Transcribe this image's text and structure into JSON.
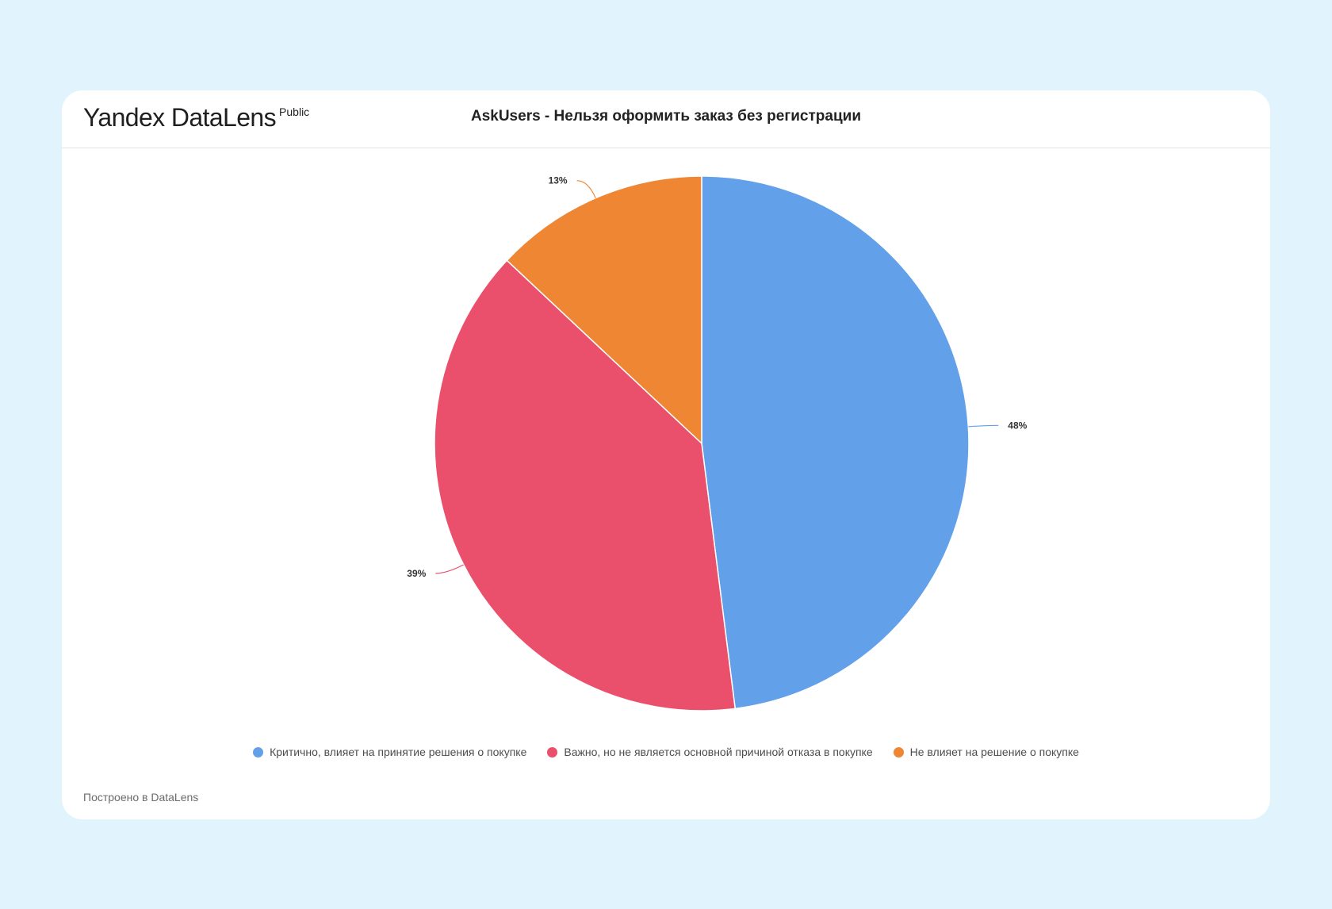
{
  "brand": {
    "name": "Yandex DataLens",
    "badge": "Public"
  },
  "footer_text": "Построено в DataLens",
  "chart_data": {
    "type": "pie",
    "title": "AskUsers - Нельзя оформить заказ без регистрации",
    "legend_position": "bottom-center",
    "slices": [
      {
        "label": "Критично, влияет на принятие решения о покупке",
        "value": 48,
        "display": "48%",
        "color": "#62a0ea"
      },
      {
        "label": "Важно, но не является основной причиной отказа в покупке",
        "value": 39,
        "display": "39%",
        "color": "#ea4f6b"
      },
      {
        "label": "Не влияет на решение о покупке",
        "value": 13,
        "display": "13%",
        "color": "#ee8634"
      }
    ]
  }
}
